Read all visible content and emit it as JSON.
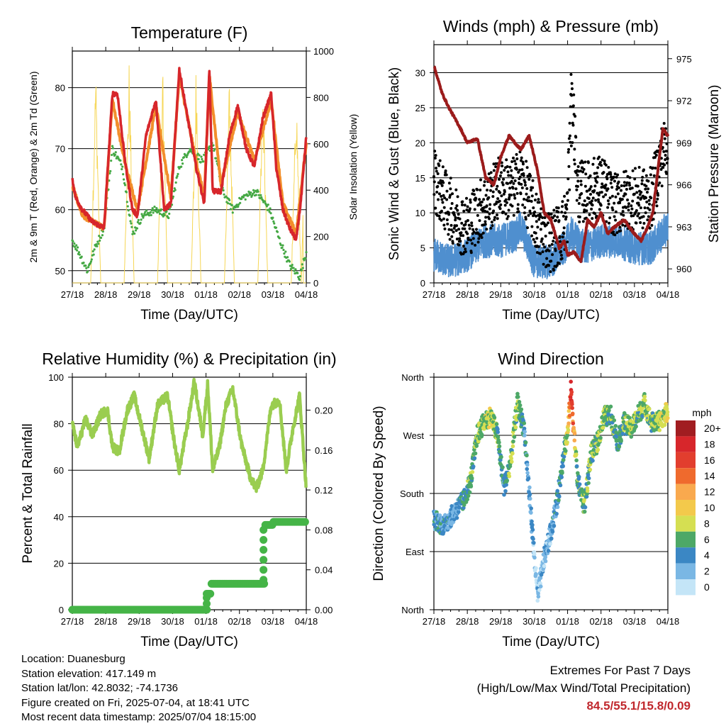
{
  "x_ticks": [
    "27/18",
    "28/18",
    "29/18",
    "30/18",
    "01/18",
    "02/18",
    "03/18",
    "04/18"
  ],
  "panels": {
    "temperature": {
      "title": "Temperature (F)",
      "xlabel": "Time (Day/UTC)",
      "ylabel_left": "2m & 9m T (Red, Orange) & 2m Td (Green)",
      "ylabel_right": "Solar Insolation (Yellow)",
      "left_ticks": [
        "50",
        "60",
        "70",
        "80"
      ],
      "right_ticks": [
        "0",
        "200",
        "400",
        "600",
        "800",
        "1000"
      ]
    },
    "winds": {
      "title": "Winds (mph) & Pressure (mb)",
      "xlabel": "Time (Day/UTC)",
      "ylabel_left": "Sonic Wind & Gust (Blue, Black)",
      "ylabel_right": "Station Pressure (Maroon)",
      "left_ticks": [
        "0",
        "5",
        "10",
        "15",
        "20",
        "25",
        "30"
      ],
      "right_ticks": [
        "960",
        "963",
        "966",
        "969",
        "972",
        "975"
      ]
    },
    "rh": {
      "title": "Relative Humidity (%) & Precipitation (in)",
      "xlabel": "Time (Day/UTC)",
      "ylabel_left": "Percent & Total Rainfall",
      "left_ticks": [
        "0",
        "20",
        "40",
        "60",
        "80",
        "100"
      ],
      "right_ticks": [
        "0.00",
        "0.04",
        "0.08",
        "0.12",
        "0.16",
        "0.20"
      ]
    },
    "wdir": {
      "title": "Wind Direction",
      "xlabel": "Time (Day/UTC)",
      "ylabel_left": "Direction (Colored By Speed)",
      "left_ticks": [
        "North",
        "East",
        "South",
        "West",
        "North"
      ],
      "legend_title": "mph",
      "legend_labels": [
        "20+",
        "18",
        "16",
        "14",
        "12",
        "10",
        "8",
        "6",
        "4",
        "2",
        "0"
      ],
      "legend_colors": [
        "#a11d21",
        "#d7262b",
        "#e23e2e",
        "#ef6a2d",
        "#f9a94e",
        "#f3c94b",
        "#d5df52",
        "#4da867",
        "#3b87c4",
        "#7ab7e4",
        "#c4e5f7"
      ]
    }
  },
  "chart_data": [
    {
      "type": "line",
      "title": "Temperature (F)",
      "xlabel": "Time (Day/UTC)",
      "ylabel": "2m & 9m T (Red, Orange) & 2m Td (Green)",
      "y2label": "Solar Insolation (Yellow)",
      "x_range_days": [
        0,
        7
      ],
      "ylim": [
        48,
        86
      ],
      "y2lim": [
        0,
        1000
      ],
      "series": [
        {
          "name": "2m T",
          "color": "#d7262b",
          "axis": "left",
          "x": [
            0,
            0.1,
            0.3,
            0.6,
            0.95,
            1.2,
            1.35,
            1.6,
            1.8,
            1.95,
            2.2,
            2.5,
            2.75,
            2.95,
            3.2,
            3.45,
            3.7,
            3.95,
            4.1,
            4.2,
            4.45,
            4.7,
            4.95,
            5.2,
            5.45,
            5.7,
            5.95,
            6.1,
            6.3,
            6.5,
            6.7,
            6.85,
            7
          ],
          "y": [
            65,
            62,
            60,
            58,
            57,
            79,
            79,
            67,
            60,
            59,
            72,
            78,
            60,
            61,
            83,
            75,
            67,
            61,
            83,
            63,
            63,
            72,
            77,
            70,
            67,
            75,
            79,
            67,
            60,
            57,
            55,
            62,
            72
          ]
        },
        {
          "name": "9m T",
          "color": "#f28e2b",
          "axis": "left",
          "x": [
            0,
            0.3,
            0.95,
            1.2,
            1.6,
            1.95,
            2.5,
            2.95,
            3.2,
            3.7,
            3.95,
            4.1,
            4.45,
            4.95,
            5.45,
            5.95,
            6.3,
            6.7,
            7
          ],
          "y": [
            64,
            59,
            57,
            78,
            67,
            60,
            77,
            62,
            82,
            68,
            62,
            82,
            64,
            76,
            68,
            78,
            61,
            56,
            71
          ]
        },
        {
          "name": "2m Td",
          "color": "#45a844",
          "axis": "left",
          "x": [
            0,
            0.2,
            0.45,
            0.7,
            0.95,
            1.2,
            1.5,
            1.8,
            2.1,
            2.5,
            2.9,
            3.2,
            3.5,
            3.9,
            4.2,
            4.5,
            4.8,
            5.1,
            5.5,
            5.9,
            6.2,
            6.5,
            6.8,
            7
          ],
          "y": [
            55,
            53,
            50,
            54,
            57,
            70,
            67,
            56,
            59,
            60,
            59,
            67,
            70,
            68,
            71,
            63,
            60,
            62,
            63,
            60,
            55,
            51,
            49,
            53
          ]
        },
        {
          "name": "Solar Insolation",
          "color": "#f6d655",
          "axis": "right",
          "x": [
            0.55,
            0.7,
            0.85,
            1.55,
            1.7,
            1.85,
            2.55,
            2.7,
            2.85,
            3.55,
            3.7,
            3.85,
            4.55,
            4.7,
            4.85,
            5.55,
            5.7,
            5.85,
            6.55,
            6.7,
            6.85,
            7
          ],
          "y": [
            0,
            950,
            0,
            0,
            960,
            0,
            0,
            980,
            0,
            0,
            940,
            0,
            0,
            900,
            0,
            0,
            900,
            0,
            0,
            850,
            0,
            900
          ]
        }
      ]
    },
    {
      "type": "line",
      "title": "Winds (mph) & Pressure (mb)",
      "xlabel": "Time (Day/UTC)",
      "ylabel": "Sonic Wind & Gust (Blue, Black)",
      "y2label": "Station Pressure (Maroon)",
      "x_range_days": [
        0,
        7
      ],
      "ylim": [
        0,
        34
      ],
      "y2lim": [
        959,
        976
      ],
      "series": [
        {
          "name": "Sonic Wind",
          "color": "#4f8fcf",
          "axis": "left",
          "x": [
            0,
            0.5,
            1,
            1.5,
            2,
            2.5,
            2.6,
            3,
            3.5,
            3.9,
            4.1,
            4.5,
            5,
            5.5,
            6,
            6.5,
            7
          ],
          "y": [
            4,
            3,
            4,
            6,
            6,
            7,
            8,
            3,
            3,
            5,
            7,
            5,
            6,
            6,
            5,
            5,
            8
          ]
        },
        {
          "name": "Gust",
          "color": "#000000",
          "axis": "left",
          "x": [
            0,
            0.3,
            0.7,
            1,
            1.3,
            1.7,
            2,
            2.3,
            2.6,
            2.9,
            3.2,
            3.5,
            3.8,
            4,
            4.1,
            4.3,
            4.6,
            5,
            5.4,
            5.8,
            6.2,
            6.5,
            6.8,
            7
          ],
          "y": [
            15,
            12,
            9,
            8,
            10,
            12,
            14,
            13,
            15,
            11,
            7,
            6,
            7,
            10,
            31,
            13,
            13,
            14,
            11,
            12,
            12,
            12,
            18,
            20
          ]
        },
        {
          "name": "Station Pressure",
          "color": "#9b1b1b",
          "axis": "right",
          "x": [
            0,
            0.25,
            0.45,
            0.8,
            1.0,
            1.3,
            1.55,
            1.8,
            2.0,
            2.25,
            2.6,
            2.85,
            3.1,
            3.3,
            3.5,
            3.75,
            3.9,
            4.0,
            4.2,
            4.4,
            4.6,
            4.8,
            5.0,
            5.2,
            5.4,
            5.7,
            6.0,
            6.2,
            6.4,
            6.55,
            6.85,
            7
          ],
          "y": [
            974.5,
            972.5,
            971.5,
            970,
            969,
            969.3,
            966.5,
            966,
            968,
            969.5,
            968.5,
            969.5,
            967,
            964,
            963.5,
            961.5,
            962,
            961,
            961.2,
            960.5,
            963.5,
            963,
            964,
            962.5,
            963,
            963.5,
            962.5,
            962,
            963,
            964,
            970,
            969.5
          ]
        }
      ]
    },
    {
      "type": "line",
      "title": "Relative Humidity (%) & Precipitation (in)",
      "xlabel": "Time (Day/UTC)",
      "ylabel": "Percent & Total Rainfall",
      "x_range_days": [
        0,
        7
      ],
      "ylim": [
        0,
        100
      ],
      "y2lim": [
        0,
        0.233
      ],
      "series": [
        {
          "name": "Relative Humidity",
          "color": "#9acd50",
          "axis": "left",
          "x": [
            0,
            0.15,
            0.4,
            0.6,
            0.85,
            1.05,
            1.2,
            1.4,
            1.65,
            1.85,
            2.05,
            2.3,
            2.55,
            2.85,
            3.05,
            3.2,
            3.45,
            3.65,
            3.9,
            4.05,
            4.2,
            4.4,
            4.6,
            4.8,
            5.05,
            5.3,
            5.5,
            5.7,
            5.95,
            6.2,
            6.4,
            6.6,
            6.8,
            7
          ],
          "y": [
            80,
            70,
            82,
            75,
            84,
            86,
            70,
            68,
            86,
            92,
            80,
            65,
            88,
            92,
            72,
            60,
            80,
            98,
            75,
            97,
            60,
            70,
            88,
            95,
            72,
            58,
            52,
            60,
            88,
            90,
            60,
            78,
            92,
            52
          ]
        },
        {
          "name": "Total Rainfall",
          "color": "#45b447",
          "axis": "right",
          "x": [
            0,
            4.0,
            4.05,
            4.15,
            4.2,
            5.7,
            5.75,
            6.0,
            7
          ],
          "y": [
            0.0,
            0.0,
            0.016,
            0.026,
            0.026,
            0.026,
            0.085,
            0.088,
            0.088
          ]
        }
      ]
    },
    {
      "type": "scatter",
      "title": "Wind Direction",
      "xlabel": "Time (Day/UTC)",
      "ylabel": "Direction (Colored By Speed)",
      "x_range_days": [
        0,
        7
      ],
      "y_categories": [
        "North",
        "East",
        "South",
        "West",
        "North"
      ],
      "ylim_deg": [
        0,
        360
      ],
      "color_by": "speed (mph)",
      "series": [
        {
          "name": "Direction",
          "x": [
            0,
            0.3,
            0.6,
            0.9,
            1.1,
            1.3,
            1.5,
            1.7,
            1.9,
            2.1,
            2.3,
            2.5,
            2.7,
            2.9,
            3.1,
            3.3,
            3.5,
            3.7,
            3.9,
            4.0,
            4.1,
            4.3,
            4.5,
            4.7,
            4.9,
            5.1,
            5.3,
            5.5,
            5.7,
            5.9,
            6.1,
            6.3,
            6.5,
            6.7,
            6.9,
            7
          ],
          "y": [
            140,
            130,
            150,
            170,
            200,
            270,
            290,
            300,
            270,
            190,
            230,
            320,
            280,
            150,
            20,
            80,
            120,
            170,
            250,
            270,
            340,
            200,
            160,
            240,
            260,
            300,
            300,
            260,
            290,
            280,
            300,
            320,
            290,
            290,
            300,
            310
          ],
          "speeds": [
            4,
            4,
            3,
            5,
            6,
            7,
            7,
            8,
            6,
            4,
            6,
            7,
            4,
            2,
            1,
            2,
            3,
            4,
            5,
            8,
            17,
            5,
            6,
            6,
            7,
            7,
            6,
            5,
            6,
            7,
            6,
            7,
            6,
            7,
            8,
            9
          ]
        }
      ]
    }
  ],
  "footer": {
    "location": "Location: Duanesburg",
    "elevation": "Station elevation: 417.149 m",
    "latlon": "Station lat/lon: 42.8032; -74.1736",
    "created": "Figure created on Fri, 2025-07-04, at 18:41 UTC",
    "recent": "Most recent data timestamp: 2025/07/04 18:15:00"
  },
  "extremes": {
    "line1": "Extremes For Past 7 Days",
    "line2": "(High/Low/Max Wind/Total Precipitation)",
    "values": "84.5/55.1/15.8/0.09"
  }
}
